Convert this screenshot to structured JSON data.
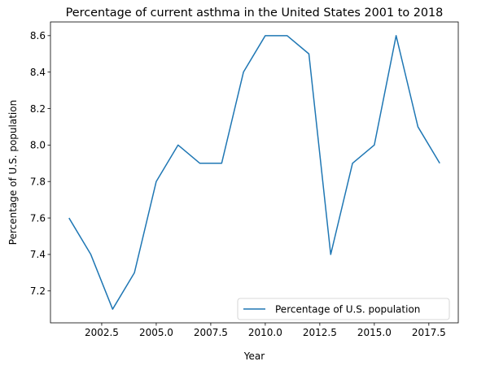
{
  "chart_data": {
    "type": "line",
    "title": "Percentage of current asthma in the United States 2001 to 2018",
    "xlabel": "Year",
    "ylabel": "Percentage of U.S. population",
    "xlim": [
      2000.15,
      2018.85
    ],
    "ylim": [
      7.025,
      8.675
    ],
    "x_ticks": [
      2002.5,
      2005.0,
      2007.5,
      2010.0,
      2012.5,
      2015.0,
      2017.5
    ],
    "x_tick_labels": [
      "2002.5",
      "2005.0",
      "2007.5",
      "2010.0",
      "2012.5",
      "2015.0",
      "2017.5"
    ],
    "y_ticks": [
      7.2,
      7.4,
      7.6,
      7.8,
      8.0,
      8.2,
      8.4,
      8.6
    ],
    "y_tick_labels": [
      "7.2",
      "7.4",
      "7.6",
      "7.8",
      "8.0",
      "8.2",
      "8.4",
      "8.6"
    ],
    "grid": false,
    "legend_position": "lower-right",
    "series": [
      {
        "name": "Percentage of U.S. population",
        "color": "#1f77b4",
        "x": [
          2001,
          2002,
          2003,
          2004,
          2005,
          2006,
          2007,
          2008,
          2009,
          2010,
          2011,
          2012,
          2013,
          2014,
          2015,
          2016,
          2017,
          2018
        ],
        "values": [
          7.6,
          7.4,
          7.1,
          7.3,
          7.8,
          8.0,
          7.9,
          7.9,
          8.4,
          8.6,
          8.6,
          8.5,
          7.4,
          7.9,
          8.0,
          8.6,
          8.1,
          7.9
        ]
      }
    ]
  }
}
